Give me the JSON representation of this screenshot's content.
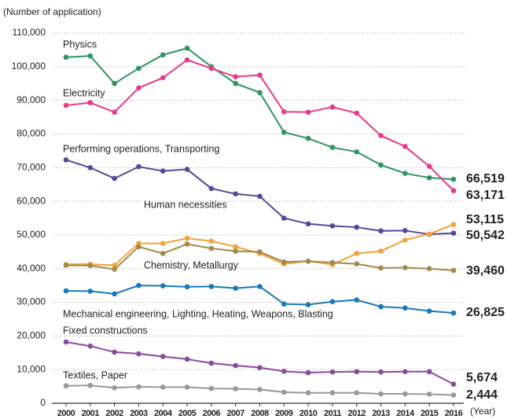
{
  "chart_data": {
    "type": "line",
    "y_axis_label": "(Number of application)",
    "x_axis_label": "(Year)",
    "categories": [
      "2000",
      "2001",
      "2002",
      "2003",
      "2004",
      "2005",
      "2006",
      "2007",
      "2008",
      "2009",
      "2010",
      "2011",
      "2012",
      "2013",
      "2014",
      "2015",
      "2016"
    ],
    "ylim": [
      0,
      110000
    ],
    "yticks": [
      0,
      {
        "value": 10000,
        "label": "10,000"
      },
      {
        "value": 20000,
        "label": "20,000"
      },
      {
        "value": 30000,
        "label": "30,000"
      },
      {
        "value": 40000,
        "label": "40,000"
      },
      {
        "value": 50000,
        "label": "50,000"
      },
      {
        "value": 60000,
        "label": "60,000"
      },
      {
        "value": 70000,
        "label": "70,000"
      },
      {
        "value": 80000,
        "label": "80,000"
      },
      {
        "value": 90000,
        "label": "90,000"
      },
      {
        "value": 100000,
        "label": "100,000"
      },
      {
        "value": 110000,
        "label": "110,000"
      }
    ],
    "grid": true,
    "series": [
      {
        "name": "Physics",
        "color": "#2f9460",
        "values": [
          102800,
          103200,
          95000,
          99500,
          103500,
          105500,
          100000,
          95000,
          92300,
          80500,
          78700,
          76000,
          74700,
          70800,
          68300,
          67000,
          66519
        ],
        "value_labels": [
          null,
          null,
          null,
          null,
          null,
          null,
          null,
          null,
          null,
          null,
          null,
          null,
          null,
          null,
          null,
          null,
          "66,519"
        ]
      },
      {
        "name": "Electricity",
        "color": "#e8388a",
        "values": [
          88500,
          89300,
          86500,
          93700,
          96700,
          102000,
          99500,
          97000,
          97500,
          86600,
          86500,
          88000,
          86200,
          79500,
          76300,
          70400,
          63171
        ],
        "value_labels": [
          null,
          null,
          null,
          null,
          null,
          null,
          null,
          null,
          null,
          null,
          null,
          null,
          null,
          null,
          null,
          null,
          "63,171"
        ]
      },
      {
        "name": "Performing operations, Transporting",
        "color": "#55489a",
        "values": [
          72300,
          70000,
          66800,
          70300,
          69000,
          69500,
          63800,
          62200,
          61500,
          55000,
          53300,
          52700,
          52300,
          51200,
          51300,
          50200,
          50542
        ],
        "value_labels": [
          null,
          null,
          null,
          null,
          null,
          null,
          null,
          null,
          null,
          null,
          null,
          null,
          null,
          null,
          null,
          null,
          "50,542"
        ]
      },
      {
        "name": "Human necessities",
        "color": "#f4a23a",
        "values": [
          41300,
          41300,
          41000,
          47500,
          47500,
          49000,
          48200,
          46500,
          44500,
          41400,
          42200,
          41200,
          44500,
          45200,
          48500,
          50300,
          53115
        ],
        "value_labels": [
          null,
          null,
          null,
          null,
          null,
          null,
          null,
          null,
          null,
          null,
          null,
          null,
          null,
          null,
          null,
          null,
          "53,115"
        ]
      },
      {
        "name": "Chemistry, Metallurgy",
        "color": "#a08a4e",
        "values": [
          41000,
          40900,
          39800,
          46500,
          44500,
          47300,
          46000,
          45200,
          45000,
          42000,
          42200,
          41800,
          41400,
          40200,
          40300,
          40000,
          39460
        ],
        "value_labels": [
          null,
          null,
          null,
          null,
          null,
          null,
          null,
          null,
          null,
          null,
          null,
          null,
          null,
          null,
          null,
          null,
          "39,460"
        ]
      },
      {
        "name": "Mechanical engineering, Lighting, Heating, Weapons, Blasting",
        "color": "#1a78b8",
        "values": [
          33400,
          33300,
          32500,
          35000,
          34900,
          34600,
          34700,
          34200,
          34700,
          29500,
          29300,
          30200,
          30700,
          28700,
          28300,
          27400,
          26825
        ],
        "value_labels": [
          null,
          null,
          null,
          null,
          null,
          null,
          null,
          null,
          null,
          null,
          null,
          null,
          null,
          null,
          null,
          null,
          "26,825"
        ]
      },
      {
        "name": "Fixed constructions",
        "color": "#8a4a9e",
        "values": [
          18200,
          17000,
          15200,
          14700,
          13900,
          13100,
          11900,
          11200,
          10600,
          9500,
          9100,
          9300,
          9400,
          9300,
          9400,
          9400,
          5674
        ],
        "value_labels": [
          null,
          null,
          null,
          null,
          null,
          null,
          null,
          null,
          null,
          null,
          null,
          null,
          null,
          null,
          null,
          null,
          "5,674"
        ]
      },
      {
        "name": "Textiles, Paper",
        "color": "#999999",
        "values": [
          5200,
          5300,
          4600,
          4900,
          4800,
          4800,
          4400,
          4300,
          4100,
          3300,
          3100,
          3100,
          3100,
          2800,
          2800,
          2700,
          2444
        ],
        "value_labels": [
          null,
          null,
          null,
          null,
          null,
          null,
          null,
          null,
          null,
          null,
          null,
          null,
          null,
          null,
          null,
          null,
          "2,444"
        ]
      }
    ]
  }
}
